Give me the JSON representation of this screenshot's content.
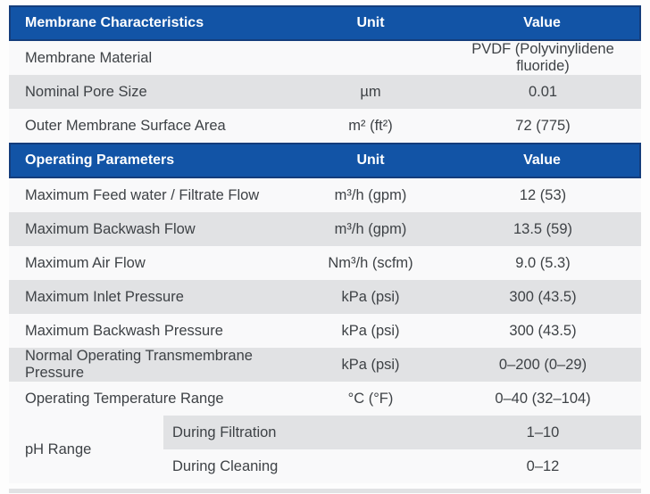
{
  "theme": {
    "header_bg": "#1254a6",
    "header_border": "#143d7c",
    "row_shaded": "#e1e2e4",
    "row_light": "#f9f9fa",
    "header_text": "#ffffff",
    "body_text": "#3e4246"
  },
  "sections": [
    {
      "header": {
        "title": "Membrane Characteristics",
        "unit": "Unit",
        "value": "Value"
      },
      "rows": [
        {
          "label": "Membrane Material",
          "unit": "",
          "value": "PVDF (Polyvinylidene fluoride)",
          "shade": false
        },
        {
          "label": "Nominal Pore Size",
          "unit": "µm",
          "value": "0.01",
          "shade": true
        },
        {
          "label": "Outer Membrane Surface Area",
          "unit": "m² (ft²)",
          "value": "72 (775)",
          "shade": false
        }
      ]
    },
    {
      "header": {
        "title": "Operating Parameters",
        "unit": "Unit",
        "value": "Value"
      },
      "rows": [
        {
          "label": "Maximum Feed water / Filtrate Flow",
          "unit": "m³/h (gpm)",
          "value": "12 (53)",
          "shade": false
        },
        {
          "label": "Maximum Backwash Flow",
          "unit": "m³/h (gpm)",
          "value": "13.5 (59)",
          "shade": true
        },
        {
          "label": "Maximum Air Flow",
          "unit": "Nm³/h (scfm)",
          "value": "9.0 (5.3)",
          "shade": false
        },
        {
          "label": "Maximum Inlet Pressure",
          "unit": "kPa (psi)",
          "value": "300 (43.5)",
          "shade": true
        },
        {
          "label": "Maximum Backwash Pressure",
          "unit": "kPa (psi)",
          "value": "300 (43.5)",
          "shade": false
        },
        {
          "label": "Normal Operating Transmembrane Pressure",
          "unit": "kPa (psi)",
          "value": "0–200 (0–29)",
          "shade": true
        },
        {
          "label": "Operating Temperature Range",
          "unit": "°C (°F)",
          "value": "0–40 (32–104)",
          "shade": false
        }
      ]
    }
  ],
  "ph_group": {
    "label": "pH Range",
    "rows": [
      {
        "sublabel": "During Filtration",
        "value": "1–10",
        "shade": true
      },
      {
        "sublabel": "During Cleaning",
        "value": "0–12",
        "shade": false
      }
    ]
  }
}
